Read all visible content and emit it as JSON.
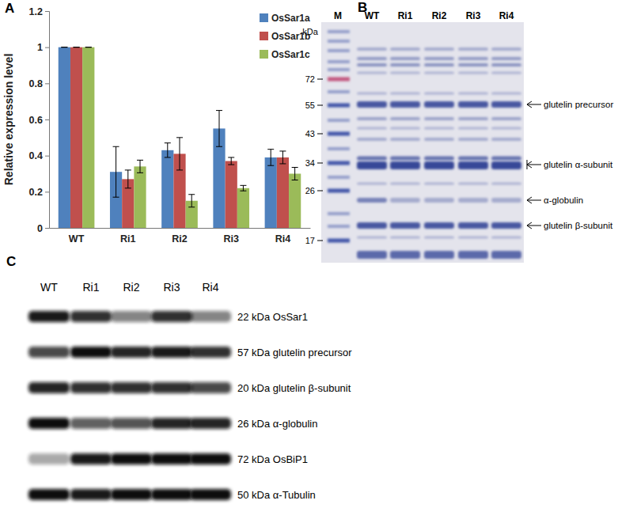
{
  "chart_data": {
    "type": "bar",
    "annotations": [
      "A"
    ],
    "ylabel": "Relative expression level",
    "categories": [
      "WT",
      "Ri1",
      "Ri2",
      "Ri3",
      "Ri4"
    ],
    "series": [
      {
        "name": "OsSar1a",
        "color": "#4f81bd",
        "values": [
          1,
          0.31,
          0.43,
          0.55,
          0.39
        ],
        "errors": [
          0,
          0.14,
          0.04,
          0.1,
          0.045
        ]
      },
      {
        "name": "OsSar1b",
        "color": "#c0504d",
        "values": [
          1,
          0.27,
          0.41,
          0.37,
          0.39
        ],
        "errors": [
          0,
          0.05,
          0.09,
          0.02,
          0.035
        ]
      },
      {
        "name": "OsSar1c",
        "color": "#9bbb59",
        "values": [
          1,
          0.34,
          0.15,
          0.22,
          0.3
        ],
        "errors": [
          0,
          0.035,
          0.035,
          0.015,
          0.035
        ]
      }
    ],
    "ylim": [
      0,
      1.2
    ],
    "yticks": [
      0,
      0.2,
      0.4,
      0.6,
      0.8,
      1,
      1.2
    ],
    "legend": "upper right"
  },
  "gel": {
    "label": "B",
    "unit": "kDa",
    "lanes": [
      "M",
      "WT",
      "Ri1",
      "Ri2",
      "Ri3",
      "Ri4"
    ],
    "markers": [
      72,
      55,
      43,
      34,
      26,
      17
    ],
    "bands": [
      "glutelin precursor",
      "glutelin α-subunit",
      "α-globulin",
      "glutelin β-subunit"
    ]
  },
  "blot": {
    "label": "C",
    "lanes": [
      "WT",
      "Ri1",
      "Ri2",
      "Ri3",
      "Ri4"
    ],
    "rows": [
      "22 kDa OsSar1",
      "57 kDa glutelin precursor",
      "20 kDa glutelin β-subunit",
      "26 kDa α-globulin",
      "72 kDa OsBiP1",
      "50 kDa α-Tubulin"
    ]
  }
}
